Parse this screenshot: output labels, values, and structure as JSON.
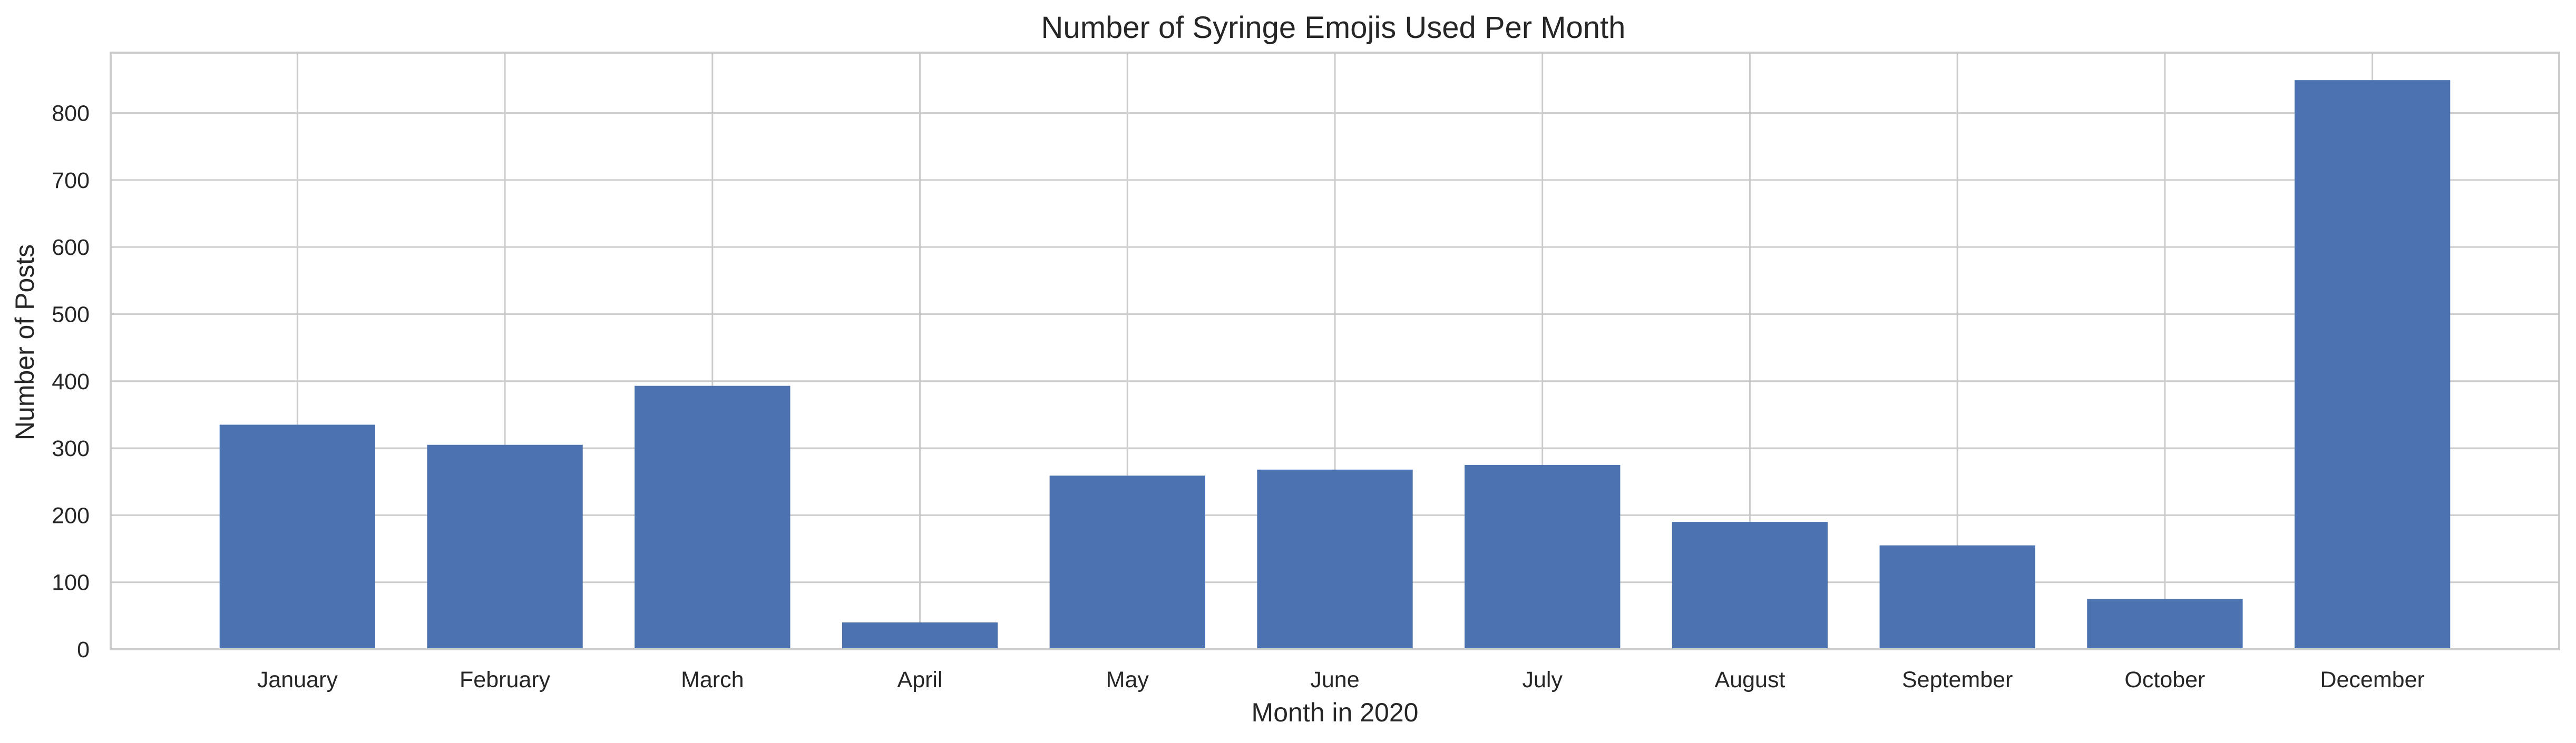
{
  "chart_data": {
    "type": "bar",
    "title": "Number of Syringe Emojis Used Per Month",
    "xlabel": "Month in 2020",
    "ylabel": "Number of Posts",
    "categories": [
      "January",
      "February",
      "March",
      "April",
      "May",
      "June",
      "July",
      "August",
      "September",
      "October",
      "December"
    ],
    "values": [
      335,
      305,
      393,
      40,
      259,
      268,
      275,
      190,
      155,
      75,
      849
    ],
    "ylim": [
      0,
      890
    ],
    "yticks": [
      0,
      100,
      200,
      300,
      400,
      500,
      600,
      700,
      800
    ],
    "grid": true,
    "bar_color": "#4c72b0",
    "grid_color": "#cccccc"
  }
}
